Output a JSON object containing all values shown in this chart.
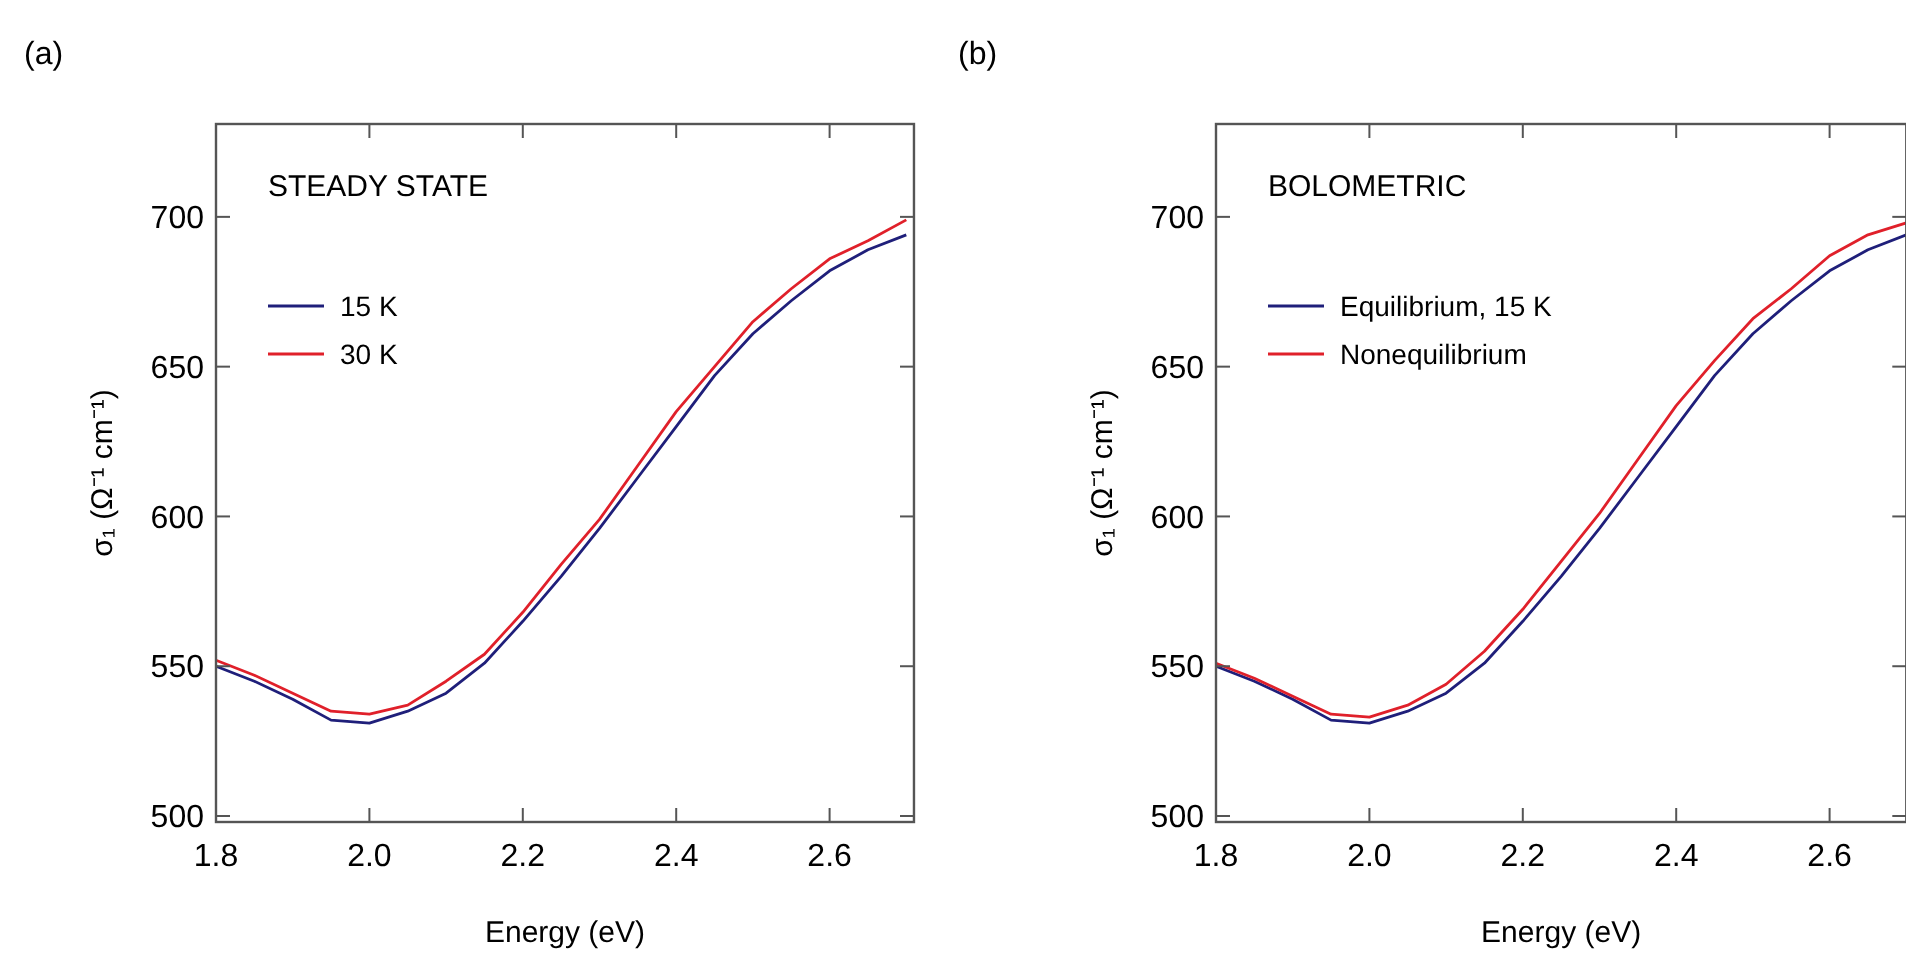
{
  "chart_data": [
    {
      "type": "line",
      "title": "(a)",
      "xlabel": "Energy (eV)",
      "ylabel": "σ₁ (Ω⁻¹ cm⁻¹)",
      "annotations": [
        "STEADY STATE"
      ],
      "x": [
        1.8,
        1.85,
        1.9,
        1.95,
        2.0,
        2.05,
        2.1,
        2.15,
        2.2,
        2.25,
        2.3,
        2.35,
        2.4,
        2.45,
        2.5,
        2.55,
        2.6,
        2.65,
        2.7
      ],
      "series": [
        {
          "name": "15 K",
          "color": "#1f1f7a",
          "values": [
            550,
            545,
            539,
            532,
            531,
            535,
            541,
            551,
            565,
            580,
            596,
            613,
            630,
            647,
            661,
            672,
            682,
            689,
            694
          ]
        },
        {
          "name": "30 K",
          "color": "#e0202a",
          "values": [
            552,
            547,
            541,
            535,
            534,
            537,
            545,
            554,
            568,
            584,
            599,
            617,
            635,
            650,
            665,
            676,
            686,
            692,
            699
          ]
        }
      ],
      "xlim": [
        1.8,
        2.71
      ],
      "ylim": [
        498,
        731
      ],
      "xticks": [
        1.8,
        {
          "value": 2.0,
          "label": "2.0"
        },
        2.2,
        2.4,
        2.6
      ],
      "yticks": [
        500,
        550,
        600,
        650,
        700
      ],
      "legend": "top left",
      "grid": false,
      "line_style": "solid",
      "marker": "none"
    },
    {
      "type": "line",
      "title": "(b)",
      "xlabel": "Energy (eV)",
      "ylabel": "σ₁ (Ω⁻¹ cm⁻¹)",
      "annotations": [
        "BOLOMETRIC"
      ],
      "x": [
        1.8,
        1.85,
        1.9,
        1.95,
        2.0,
        2.05,
        2.1,
        2.15,
        2.2,
        2.25,
        2.3,
        2.35,
        2.4,
        2.45,
        2.5,
        2.55,
        2.6,
        2.65,
        2.7
      ],
      "series": [
        {
          "name": "Equilibrium, 15 K",
          "color": "#1f1f7a",
          "values": [
            550,
            545,
            539,
            532,
            531,
            535,
            541,
            551,
            565,
            580,
            596,
            613,
            630,
            647,
            661,
            672,
            682,
            689,
            694
          ]
        },
        {
          "name": "Nonequilibrium",
          "color": "#e0202a",
          "values": [
            551,
            546,
            540,
            534,
            533,
            537,
            544,
            555,
            569,
            585,
            601,
            619,
            637,
            652,
            666,
            676,
            687,
            694,
            698
          ]
        }
      ],
      "xlim": [
        1.8,
        2.7
      ],
      "ylim": [
        498,
        731
      ],
      "xticks": [
        1.8,
        {
          "value": 2.0,
          "label": "2.0"
        },
        2.2,
        2.4,
        2.6
      ],
      "yticks": [
        500,
        550,
        600,
        650,
        700
      ],
      "legend": "top left",
      "grid": false,
      "line_style": "solid",
      "marker": "none"
    }
  ]
}
